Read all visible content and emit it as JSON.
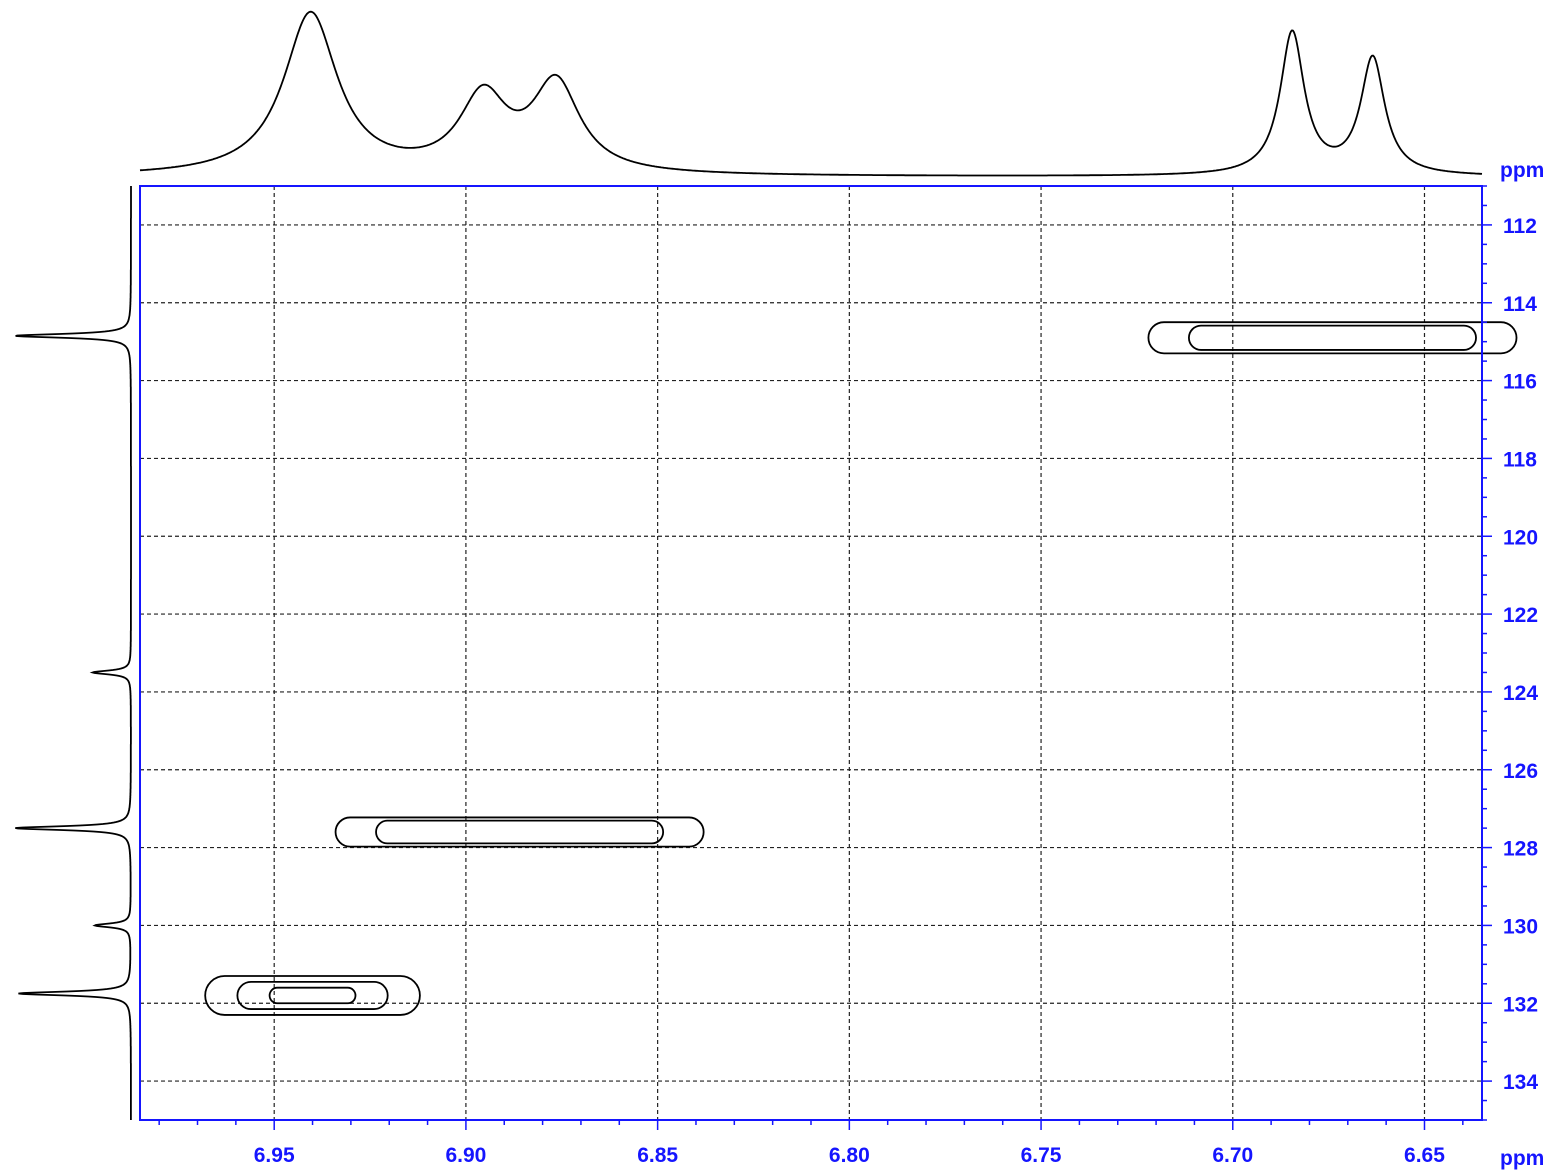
{
  "chart_data": {
    "type": "2d-nmr-contour",
    "x_axis": {
      "unit_label": "ppm",
      "range": [
        6.985,
        6.635
      ],
      "reversed": true,
      "ticks": [
        6.95,
        6.9,
        6.85,
        6.8,
        6.75,
        6.7,
        6.65
      ],
      "tick_labels": [
        "6.95",
        "6.90",
        "6.85",
        "6.80",
        "6.75",
        "6.70",
        "6.65"
      ]
    },
    "y_axis": {
      "unit_label": "ppm",
      "range": [
        111.0,
        135.0
      ],
      "ticks": [
        112,
        114,
        116,
        118,
        120,
        122,
        124,
        126,
        128,
        130,
        132,
        134
      ],
      "tick_labels": [
        "112",
        "114",
        "116",
        "118",
        "120",
        "122",
        "124",
        "126",
        "128",
        "130",
        "132",
        "134"
      ]
    },
    "grid": "dashed",
    "axis_color": "#1515ff",
    "line_color": "#000000",
    "cross_peaks": [
      {
        "x": 6.94,
        "y": 131.8,
        "x_width": 0.028,
        "y_width": 1.0,
        "levels": 3
      },
      {
        "x": 6.886,
        "y": 127.6,
        "x_width": 0.048,
        "y_width": 0.75,
        "levels": 2
      },
      {
        "x": 6.674,
        "y": 114.9,
        "x_width": 0.048,
        "y_width": 0.8,
        "levels": 2
      }
    ],
    "top_projection_peaks": [
      {
        "ppm": 6.9405,
        "height": 1.0,
        "width": 0.0085
      },
      {
        "ppm": 6.8955,
        "height": 0.46,
        "width": 0.0075
      },
      {
        "ppm": 6.8765,
        "height": 0.55,
        "width": 0.0075
      },
      {
        "ppm": 6.6845,
        "height": 0.88,
        "width": 0.0038
      },
      {
        "ppm": 6.6635,
        "height": 0.72,
        "width": 0.0038
      }
    ],
    "left_projection_peaks": [
      {
        "ppm": 114.85,
        "height": 1.0
      },
      {
        "ppm": 123.5,
        "height": 0.33
      },
      {
        "ppm": 127.5,
        "height": 1.0
      },
      {
        "ppm": 130.0,
        "height": 0.31
      },
      {
        "ppm": 131.75,
        "height": 0.97
      }
    ]
  }
}
